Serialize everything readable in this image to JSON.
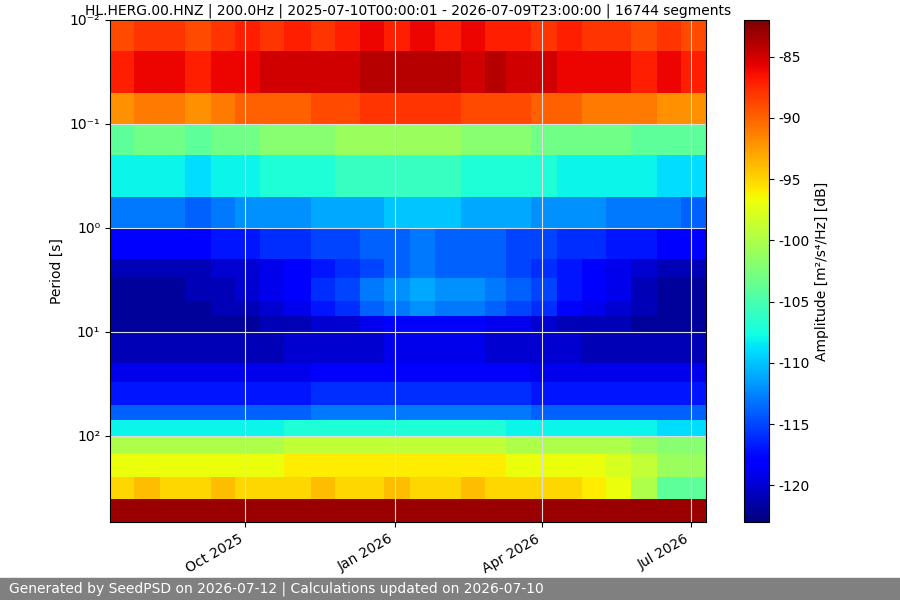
{
  "chart_data": {
    "type": "heatmap",
    "title": "HL.HERG.00.HNZ | 200.0Hz | 2025-07-10T00:00:01 - 2026-07-09T23:00:00 | 16744 segments",
    "y_label": "Period [s]",
    "colorbar_label": "Amplitude [m²/s⁴/Hz] [dB]",
    "footer": "Generated by SeedPSD on 2026-07-12 | Calculations updated on 2026-07-10",
    "log": "y",
    "grid": true,
    "xlim": [
      "2025-07-10",
      "2026-07-10"
    ],
    "xticks": [
      {
        "value": "2025-10-01",
        "label": "Oct 2025"
      },
      {
        "value": "2026-01-01",
        "label": "Jan 2026"
      },
      {
        "value": "2026-04-01",
        "label": "Apr 2026"
      },
      {
        "value": "2026-07-01",
        "label": "Jul 2026"
      }
    ],
    "ylim": [
      671,
      0.01
    ],
    "yticks": [
      {
        "value": 0.01,
        "label": "10⁻²"
      },
      {
        "value": 0.1,
        "label": "10⁻¹"
      },
      {
        "value": 1,
        "label": "10⁰"
      },
      {
        "value": 10,
        "label": "10¹"
      },
      {
        "value": 100,
        "label": "10²"
      }
    ],
    "x_edges": [
      "2025-07-10",
      "2025-07-25",
      "2025-08-10",
      "2025-08-25",
      "2025-09-10",
      "2025-09-25",
      "2025-10-10",
      "2025-10-25",
      "2025-11-10",
      "2025-11-25",
      "2025-12-10",
      "2025-12-25",
      "2026-01-10",
      "2026-01-25",
      "2026-02-10",
      "2026-02-25",
      "2026-03-10",
      "2026-03-25",
      "2026-04-10",
      "2026-04-25",
      "2026-05-10",
      "2026-05-25",
      "2026-06-10",
      "2026-06-25",
      "2026-07-10"
    ],
    "y_edges": [
      0.01,
      0.02,
      0.05,
      0.1,
      0.2,
      0.5,
      1,
      2,
      3,
      5,
      7,
      10,
      20,
      30,
      50,
      70,
      100,
      150,
      250,
      400,
      671
    ],
    "cells": [
      [
        -89,
        -88,
        -88,
        -89,
        -88,
        -87,
        -88,
        -87,
        -88,
        -87,
        -86,
        -87,
        -86,
        -87,
        -86,
        -87,
        -87,
        -88,
        -87,
        -88,
        -88,
        -89,
        -88,
        -89
      ],
      [
        -87,
        -86,
        -86,
        -87,
        -86,
        -86,
        -85,
        -85,
        -85,
        -85,
        -84,
        -84,
        -84,
        -84,
        -85,
        -84,
        -85,
        -85,
        -86,
        -86,
        -86,
        -87,
        -86,
        -87
      ],
      [
        -92,
        -91,
        -91,
        -92,
        -91,
        -90,
        -90,
        -90,
        -89,
        -89,
        -88,
        -88,
        -88,
        -88,
        -89,
        -89,
        -89,
        -90,
        -90,
        -91,
        -91,
        -91,
        -92,
        -92
      ],
      [
        -104,
        -103,
        -103,
        -104,
        -103,
        -103,
        -102,
        -102,
        -102,
        -101,
        -101,
        -101,
        -101,
        -101,
        -102,
        -102,
        -102,
        -103,
        -103,
        -103,
        -103,
        -104,
        -104,
        -104
      ],
      [
        -108,
        -108,
        -108,
        -109,
        -108,
        -108,
        -107,
        -107,
        -107,
        -106,
        -106,
        -106,
        -106,
        -106,
        -107,
        -107,
        -107,
        -107,
        -108,
        -108,
        -108,
        -108,
        -109,
        -109
      ],
      [
        -113,
        -113,
        -113,
        -114,
        -113,
        -112,
        -112,
        -112,
        -111,
        -111,
        -111,
        -110,
        -110,
        -110,
        -111,
        -111,
        -111,
        -112,
        -112,
        -112,
        -113,
        -113,
        -113,
        -114
      ],
      [
        -118,
        -118,
        -118,
        -118,
        -117,
        -117,
        -116,
        -116,
        -115,
        -115,
        -114,
        -114,
        -113,
        -114,
        -114,
        -114,
        -115,
        -115,
        -116,
        -116,
        -117,
        -117,
        -118,
        -118
      ],
      [
        -121,
        -121,
        -121,
        -121,
        -120,
        -120,
        -119,
        -118,
        -117,
        -116,
        -115,
        -114,
        -113,
        -114,
        -114,
        -114,
        -115,
        -116,
        -117,
        -118,
        -119,
        -120,
        -121,
        -121
      ],
      [
        -122,
        -122,
        -122,
        -121,
        -121,
        -120,
        -119,
        -118,
        -116,
        -115,
        -113,
        -112,
        -111,
        -112,
        -112,
        -113,
        -114,
        -115,
        -117,
        -118,
        -119,
        -121,
        -122,
        -122
      ],
      [
        -122,
        -122,
        -122,
        -122,
        -121,
        -121,
        -120,
        -119,
        -117,
        -116,
        -114,
        -113,
        -112,
        -113,
        -113,
        -114,
        -115,
        -116,
        -118,
        -119,
        -120,
        -121,
        -122,
        -122
      ],
      [
        -122,
        -122,
        -122,
        -122,
        -122,
        -122,
        -121,
        -121,
        -120,
        -120,
        -119,
        -118,
        -118,
        -118,
        -118,
        -119,
        -119,
        -120,
        -121,
        -121,
        -121,
        -122,
        -122,
        -122
      ],
      [
        -121,
        -121,
        -121,
        -121,
        -121,
        -121,
        -121,
        -120,
        -120,
        -120,
        -120,
        -119,
        -119,
        -119,
        -119,
        -120,
        -120,
        -120,
        -120,
        -121,
        -121,
        -121,
        -121,
        -121
      ],
      [
        -119,
        -119,
        -119,
        -119,
        -119,
        -119,
        -119,
        -119,
        -118,
        -118,
        -118,
        -118,
        -118,
        -118,
        -118,
        -118,
        -118,
        -119,
        -119,
        -119,
        -119,
        -119,
        -119,
        -119
      ],
      [
        -117,
        -117,
        -117,
        -117,
        -117,
        -117,
        -117,
        -117,
        -116,
        -116,
        -116,
        -116,
        -116,
        -116,
        -116,
        -116,
        -116,
        -117,
        -117,
        -117,
        -117,
        -117,
        -117,
        -117
      ],
      [
        -114,
        -114,
        -114,
        -114,
        -114,
        -114,
        -114,
        -114,
        -113,
        -113,
        -113,
        -113,
        -113,
        -113,
        -113,
        -113,
        -113,
        -114,
        -114,
        -114,
        -114,
        -114,
        -114,
        -114
      ],
      [
        -108,
        -108,
        -108,
        -108,
        -108,
        -108,
        -108,
        -107,
        -107,
        -107,
        -107,
        -107,
        -107,
        -107,
        -107,
        -107,
        -108,
        -108,
        -108,
        -108,
        -108,
        -108,
        -109,
        -109
      ],
      [
        -100,
        -100,
        -100,
        -100,
        -100,
        -100,
        -100,
        -99,
        -99,
        -99,
        -99,
        -99,
        -99,
        -99,
        -99,
        -99,
        -100,
        -100,
        -100,
        -100,
        -100,
        -101,
        -102,
        -102
      ],
      [
        -97,
        -97,
        -97,
        -97,
        -97,
        -97,
        -97,
        -96,
        -96,
        -96,
        -96,
        -96,
        -96,
        -96,
        -96,
        -96,
        -97,
        -97,
        -97,
        -97,
        -98,
        -99,
        -101,
        -101
      ],
      [
        -95,
        -94,
        -95,
        -95,
        -94,
        -95,
        -95,
        -95,
        -94,
        -95,
        -95,
        -94,
        -95,
        -95,
        -94,
        -95,
        -95,
        -95,
        -95,
        -96,
        -97,
        -100,
        -104,
        -104
      ],
      [
        -83,
        -83,
        -83,
        -83,
        -83,
        -83,
        -83,
        -83,
        -83,
        -83,
        -83,
        -83,
        -83,
        -83,
        -83,
        -83,
        -83,
        -83,
        -83,
        -83,
        -83,
        -83,
        -83,
        -83
      ]
    ],
    "colorbar_lim": [
      -123,
      -82
    ],
    "colorbar_ticks": [
      -85,
      -90,
      -95,
      -100,
      -105,
      -110,
      -115,
      -120
    ]
  }
}
